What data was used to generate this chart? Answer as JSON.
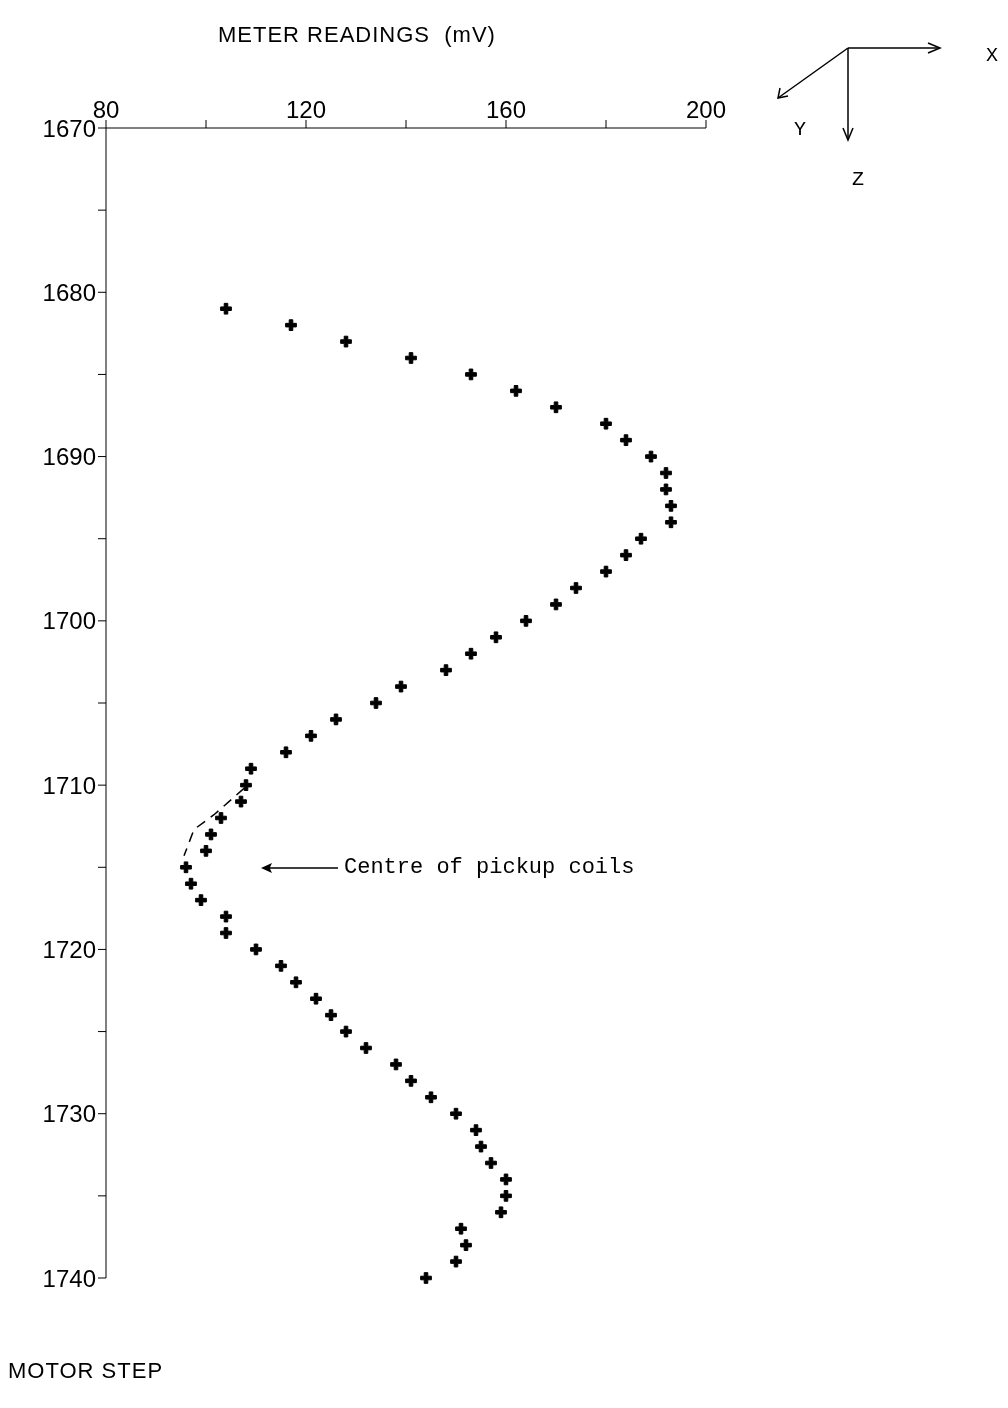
{
  "chart_data": {
    "type": "scatter",
    "xlabel": "METER READINGS  (mV)",
    "ylabel": "MOTOR STEP",
    "xlim": [
      80,
      200
    ],
    "xticks": [
      80,
      {
        "value": 100,
        "label": null
      },
      120,
      {
        "value": 140,
        "label": null
      },
      160,
      {
        "value": 180,
        "label": null
      },
      200
    ],
    "ylim": [
      1740,
      1670
    ],
    "yticks": [
      1670,
      {
        "value": 1675,
        "label": null
      },
      1680,
      {
        "value": 1685,
        "label": null
      },
      1690,
      {
        "value": 1695,
        "label": null
      },
      1700,
      {
        "value": 1705,
        "label": null
      },
      1710,
      {
        "value": 1715,
        "label": null
      },
      1720,
      {
        "value": 1725,
        "label": null
      },
      1730,
      {
        "value": 1735,
        "label": null
      },
      1740
    ],
    "marker": "cross",
    "series": [
      {
        "color": "#000000",
        "x": [
          104,
          117,
          128,
          141,
          153,
          162,
          170,
          180,
          184,
          189,
          192,
          192,
          193,
          193,
          187,
          184,
          180,
          174,
          170,
          164,
          158,
          153,
          148,
          139,
          134,
          126,
          121,
          116,
          109,
          108,
          107,
          103,
          101,
          100,
          96,
          97,
          99,
          104,
          104,
          110,
          115,
          118,
          122,
          125,
          128,
          132,
          138,
          141,
          145,
          150,
          154,
          155,
          157,
          160,
          160,
          159,
          151,
          152,
          150,
          144
        ],
        "values": [
          1681,
          1682,
          1683,
          1684,
          1685,
          1686,
          1687,
          1688,
          1689,
          1690,
          1691,
          1692,
          1693,
          1694,
          1695,
          1696,
          1697,
          1698,
          1699,
          1700,
          1701,
          1702,
          1703,
          1704,
          1705,
          1706,
          1707,
          1708,
          1709,
          1710,
          1711,
          1712,
          1713,
          1714,
          1715,
          1716,
          1717,
          1718,
          1719,
          1720,
          1721,
          1722,
          1723,
          1724,
          1725,
          1726,
          1727,
          1728,
          1729,
          1730,
          1731,
          1732,
          1733,
          1734,
          1735,
          1736,
          1737,
          1738,
          1739,
          1740
        ]
      },
      {
        "type": "line",
        "color": "#000000",
        "marker": "none",
        "line_style": "dashed",
        "x": [
          107.6,
          101.6,
          97.6,
          95.6
        ],
        "values": [
          1710.2,
          1711.8,
          1712.7,
          1714.3
        ]
      }
    ],
    "annotations": [
      "Centre of pickup coils",
      "X",
      "Y",
      "Z"
    ]
  }
}
